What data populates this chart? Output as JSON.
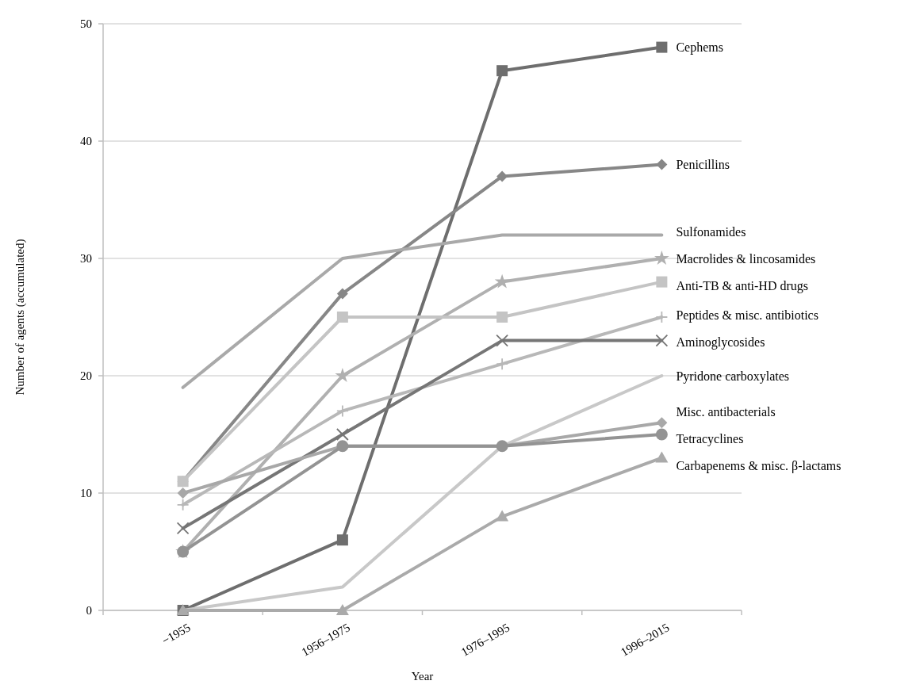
{
  "chart_data": {
    "type": "line",
    "xlabel": "Year",
    "ylabel": "Number of agents (accumulated)",
    "categories": [
      "−1955",
      "1956–1975",
      "1976–1995",
      "1996–2015"
    ],
    "ylim": [
      0,
      50
    ],
    "yticks": [
      0,
      10,
      20,
      30,
      40,
      50
    ],
    "grid": "y",
    "legend": false,
    "series": [
      {
        "name": "Cephems",
        "color": "#6e6e6e",
        "marker": "square",
        "values": [
          0,
          6,
          46,
          48
        ]
      },
      {
        "name": "Penicillins",
        "color": "#878787",
        "marker": "diamond",
        "values": [
          11,
          27,
          37,
          38
        ]
      },
      {
        "name": "Sulfonamides",
        "color": "#a9a9a9",
        "marker": "none",
        "values": [
          19,
          30,
          32,
          32
        ]
      },
      {
        "name": "Macrolides & lincosamides",
        "color": "#b0b0b0",
        "marker": "star",
        "values": [
          5,
          20,
          28,
          30
        ]
      },
      {
        "name": "Anti-TB & anti-HD drugs",
        "color": "#c4c4c4",
        "marker": "square",
        "values": [
          11,
          25,
          25,
          28
        ]
      },
      {
        "name": "Peptides & misc. antibiotics",
        "color": "#b8b8b8",
        "marker": "plus",
        "values": [
          9,
          17,
          21,
          25
        ]
      },
      {
        "name": "Aminoglycosides",
        "color": "#767676",
        "marker": "cross",
        "values": [
          7,
          15,
          23,
          23
        ]
      },
      {
        "name": "Pyridone carboxylates",
        "color": "#c8c8c8",
        "marker": "none",
        "values": [
          0,
          2,
          14,
          20
        ]
      },
      {
        "name": "Misc. antibacterials",
        "color": "#a8a8a8",
        "marker": "diamond",
        "values": [
          10,
          14,
          14,
          16
        ]
      },
      {
        "name": "Tetracyclines",
        "color": "#939393",
        "marker": "circle",
        "values": [
          5,
          14,
          14,
          15
        ]
      },
      {
        "name": "Carbapenems & misc. β-lactams",
        "color": "#aaaaaa",
        "marker": "triangle",
        "values": [
          0,
          0,
          8,
          13
        ]
      }
    ]
  }
}
